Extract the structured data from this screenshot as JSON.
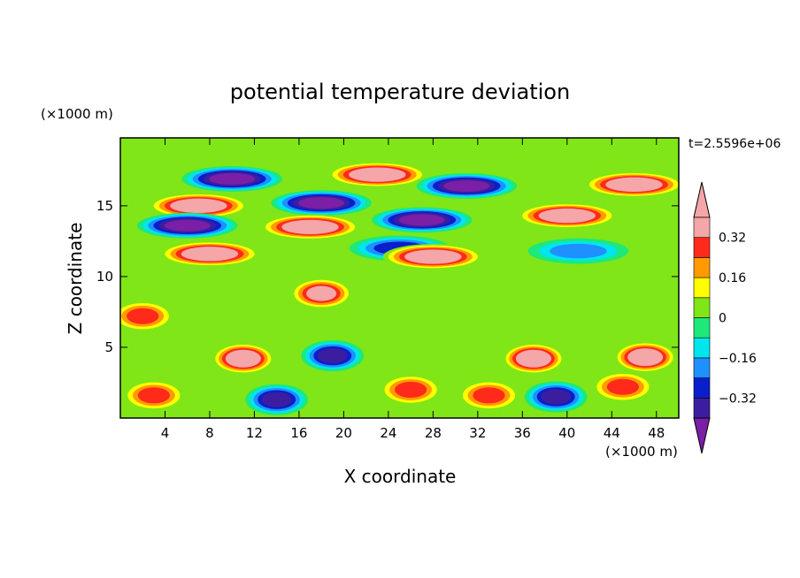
{
  "chart_data": {
    "type": "heatmap",
    "title": "potential temperature deviation",
    "time_label": "t=2.5596e+06",
    "xlabel": "X coordinate",
    "ylabel": "Z coordinate",
    "x_unit": "(×1000 m)",
    "y_unit": "(×1000 m)",
    "xlim": [
      0,
      50
    ],
    "ylim": [
      0,
      19.8
    ],
    "x_ticks": [
      4,
      8,
      12,
      16,
      20,
      24,
      28,
      32,
      36,
      40,
      44,
      48
    ],
    "y_ticks": [
      5,
      10,
      15
    ],
    "colorbar": {
      "levels": [
        -0.4,
        -0.32,
        -0.24,
        -0.16,
        -0.08,
        0,
        0.08,
        0.16,
        0.24,
        0.32,
        0.4
      ],
      "tick_labels": [
        {
          "value": 0.32,
          "label": "0.32"
        },
        {
          "value": 0.16,
          "label": "0.16"
        },
        {
          "value": 0,
          "label": "0"
        },
        {
          "value": -0.16,
          "label": "−0.16"
        },
        {
          "value": -0.32,
          "label": "−0.32"
        }
      ],
      "colors": [
        "#7a1fa6",
        "#3b1ea0",
        "#0a1ecb",
        "#1e90ff",
        "#00e5ee",
        "#1ee87a",
        "#80e617",
        "#ffff00",
        "#ff9a00",
        "#ff2a1a",
        "#f4a6a8"
      ],
      "extend": "both"
    },
    "features": [
      {
        "x": 10,
        "z": 16.9,
        "value": -0.45
      },
      {
        "x": 23,
        "z": 17.2,
        "value": 0.45
      },
      {
        "x": 31,
        "z": 16.4,
        "value": -0.45
      },
      {
        "x": 46,
        "z": 16.5,
        "value": 0.45
      },
      {
        "x": 7,
        "z": 15.0,
        "value": 0.45
      },
      {
        "x": 18,
        "z": 15.2,
        "value": -0.45
      },
      {
        "x": 27,
        "z": 14.0,
        "value": -0.45
      },
      {
        "x": 40,
        "z": 14.3,
        "value": 0.45
      },
      {
        "x": 6,
        "z": 13.6,
        "value": -0.45
      },
      {
        "x": 17,
        "z": 13.5,
        "value": 0.45
      },
      {
        "x": 25,
        "z": 12.0,
        "value": -0.3
      },
      {
        "x": 8,
        "z": 11.6,
        "value": 0.45
      },
      {
        "x": 28,
        "z": 11.4,
        "value": 0.45
      },
      {
        "x": 41,
        "z": 11.8,
        "value": -0.22
      },
      {
        "x": 18,
        "z": 8.8,
        "value": 0.4
      },
      {
        "x": 2,
        "z": 7.2,
        "value": 0.3
      },
      {
        "x": 11,
        "z": 4.2,
        "value": 0.45
      },
      {
        "x": 19,
        "z": 4.4,
        "value": -0.4
      },
      {
        "x": 37,
        "z": 4.2,
        "value": 0.45
      },
      {
        "x": 47,
        "z": 4.3,
        "value": 0.45
      },
      {
        "x": 3,
        "z": 1.6,
        "value": 0.3
      },
      {
        "x": 14,
        "z": 1.3,
        "value": -0.4
      },
      {
        "x": 26,
        "z": 2.0,
        "value": 0.3
      },
      {
        "x": 33,
        "z": 1.6,
        "value": 0.3
      },
      {
        "x": 39,
        "z": 1.5,
        "value": -0.35
      },
      {
        "x": 45,
        "z": 2.2,
        "value": 0.3
      }
    ]
  }
}
